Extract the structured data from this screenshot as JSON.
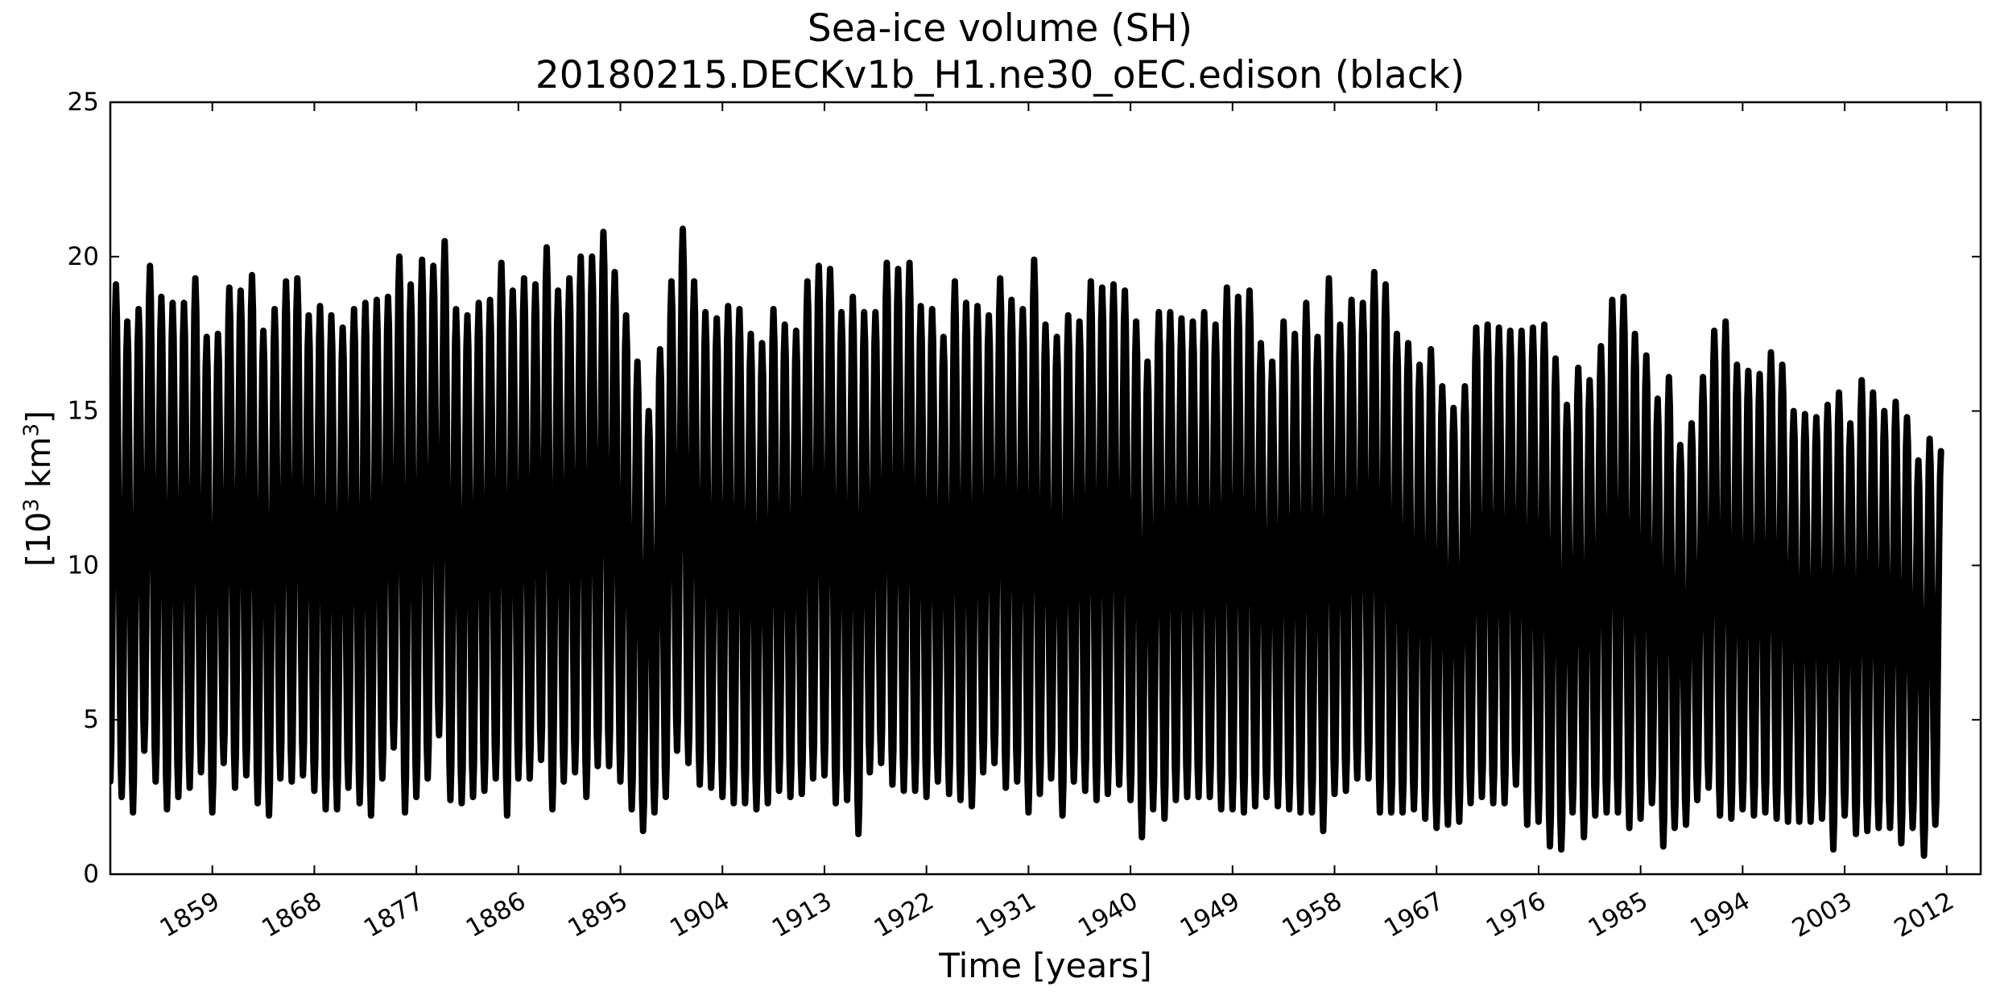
{
  "title": "Sea-ice volume (SH)",
  "subtitle": "20180215.DECKv1b_H1.ne30_oEC.edison (black)",
  "chart_data": {
    "type": "line",
    "title": "Sea-ice volume (SH)",
    "subtitle": "20180215.DECKv1b_H1.ne30_oEC.edison (black)",
    "xlabel": "Time [years]",
    "ylabel_base": "[10",
    "ylabel_exp": "3",
    "ylabel_mid": " km",
    "ylabel_exp2": "3",
    "ylabel_end": "]",
    "xlim": [
      1850,
      2015
    ],
    "ylim": [
      0,
      25
    ],
    "x_ticks": [
      1859,
      1868,
      1877,
      1886,
      1895,
      1904,
      1913,
      1922,
      1931,
      1940,
      1949,
      1958,
      1967,
      1976,
      1985,
      1994,
      2003,
      2012
    ],
    "y_ticks": [
      0,
      5,
      10,
      15,
      20,
      25
    ],
    "grid": false,
    "series": [
      {
        "color": "#000000",
        "x_start": 1850,
        "step": 1,
        "annual_max": [
          19.1,
          17.9,
          18.3,
          19.7,
          18.7,
          18.5,
          18.5,
          19.3,
          17.4,
          17.5,
          19.0,
          18.9,
          19.4,
          17.6,
          18.3,
          19.2,
          19.3,
          18.1,
          18.4,
          18.1,
          17.7,
          18.3,
          18.5,
          18.6,
          18.7,
          20.0,
          19.1,
          19.9,
          19.7,
          20.5,
          18.3,
          18.1,
          18.5,
          18.6,
          19.8,
          18.9,
          19.3,
          19.1,
          20.3,
          18.9,
          19.3,
          20.0,
          20.0,
          20.8,
          19.5,
          18.1,
          16.6,
          15.0,
          17.0,
          19.2,
          20.9,
          19.2,
          18.2,
          18.0,
          18.4,
          18.3,
          17.5,
          17.2,
          18.3,
          17.8,
          17.6,
          19.2,
          19.7,
          19.6,
          18.2,
          18.7,
          18.2,
          18.2,
          19.8,
          19.6,
          19.8,
          18.4,
          18.3,
          17.4,
          19.2,
          18.5,
          18.4,
          18.1,
          19.3,
          18.6,
          18.3,
          19.9,
          17.8,
          17.4,
          18.1,
          17.9,
          19.2,
          19.0,
          19.1,
          18.9,
          17.9,
          16.6,
          18.2,
          18.2,
          18.0,
          17.9,
          18.2,
          17.8,
          19.0,
          18.7,
          18.9,
          17.2,
          16.6,
          17.9,
          17.5,
          18.5,
          17.4,
          19.3,
          17.8,
          18.6,
          18.5,
          19.5,
          19.1,
          17.5,
          17.2,
          16.5,
          17.0,
          15.8,
          15.1,
          15.8,
          17.7,
          17.8,
          17.7,
          17.6,
          17.6,
          17.7,
          17.8,
          16.7,
          15.2,
          16.4,
          16.0,
          17.1,
          18.6,
          18.7,
          17.5,
          16.8,
          15.4,
          16.1,
          13.9,
          14.6,
          16.1,
          17.6,
          17.9,
          16.5,
          16.3,
          16.2,
          16.9,
          16.5,
          15.0,
          14.9,
          14.8,
          15.2,
          15.6,
          14.6,
          16.0,
          15.6,
          15.0,
          15.3,
          14.8,
          13.4,
          14.1,
          13.7,
          14.5
        ],
        "annual_min": [
          3.0,
          2.5,
          2.0,
          4.0,
          3.0,
          2.1,
          2.5,
          2.8,
          3.3,
          2.0,
          3.6,
          2.8,
          3.2,
          2.3,
          1.9,
          3.1,
          3.0,
          3.2,
          2.7,
          2.1,
          2.1,
          2.8,
          2.3,
          1.9,
          3.1,
          4.1,
          2.0,
          2.5,
          3.1,
          4.5,
          2.4,
          2.3,
          2.5,
          2.7,
          3.1,
          1.9,
          3.1,
          3.1,
          3.7,
          2.1,
          3.0,
          3.3,
          2.5,
          3.5,
          3.5,
          3.0,
          2.1,
          1.4,
          2.0,
          2.5,
          4.0,
          3.6,
          2.9,
          2.8,
          2.5,
          2.3,
          2.3,
          2.1,
          2.3,
          2.7,
          2.5,
          2.6,
          3.1,
          3.2,
          2.3,
          2.4,
          1.3,
          3.3,
          3.6,
          2.9,
          2.7,
          2.7,
          2.5,
          3.0,
          2.6,
          2.4,
          2.2,
          3.3,
          3.6,
          2.8,
          3.0,
          2.0,
          2.6,
          3.1,
          1.9,
          3.0,
          2.7,
          2.4,
          2.6,
          2.9,
          2.4,
          1.2,
          2.1,
          1.8,
          2.4,
          2.5,
          2.5,
          2.5,
          2.1,
          2.1,
          2.0,
          2.2,
          2.5,
          2.2,
          2.1,
          2.0,
          2.0,
          1.4,
          2.6,
          2.7,
          3.1,
          3.1,
          2.0,
          2.0,
          2.0,
          2.1,
          1.8,
          1.5,
          1.6,
          1.7,
          2.3,
          2.5,
          2.3,
          2.3,
          2.9,
          1.6,
          1.7,
          0.9,
          0.8,
          2.0,
          1.2,
          1.9,
          2.0,
          2.0,
          1.5,
          1.8,
          2.3,
          0.9,
          1.5,
          1.6,
          2.4,
          2.8,
          1.9,
          1.8,
          2.1,
          1.9,
          2.0,
          1.8,
          1.7,
          1.7,
          1.7,
          1.8,
          0.8,
          1.9,
          1.3,
          1.4,
          1.5,
          1.5,
          1.0,
          1.5,
          0.6,
          1.6
        ]
      }
    ]
  }
}
